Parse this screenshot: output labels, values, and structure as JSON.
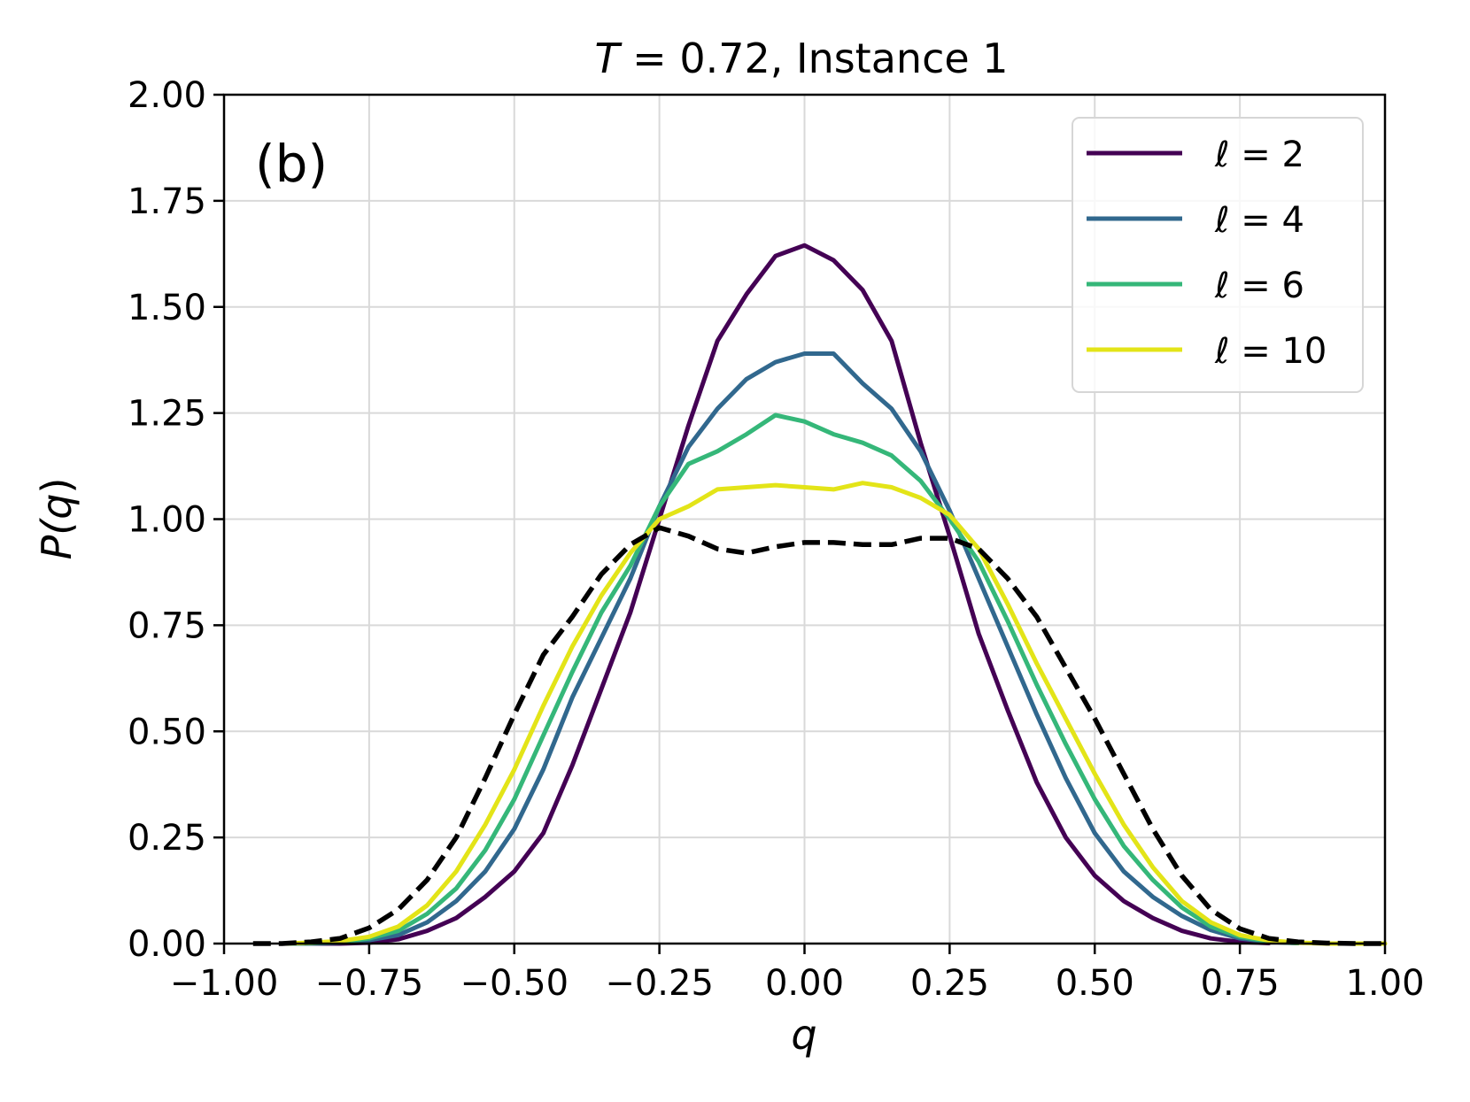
{
  "chart_data": {
    "type": "line",
    "title": "T = 0.72, Instance 1",
    "title_parts": {
      "var": "T",
      "rest": " = 0.72, Instance 1"
    },
    "panel_label": "(b)",
    "xlabel": "q",
    "ylabel": "P(q)",
    "ylabel_parts": {
      "p": "P(",
      "q": "q",
      "close": ")"
    },
    "xlim": [
      -1.0,
      1.0
    ],
    "ylim": [
      0.0,
      2.0
    ],
    "xticks": [
      -1.0,
      -0.75,
      -0.5,
      -0.25,
      0.0,
      0.25,
      0.5,
      0.75,
      1.0
    ],
    "xtick_labels": [
      "−1.00",
      "−0.75",
      "−0.50",
      "−0.25",
      "0.00",
      "0.25",
      "0.50",
      "0.75",
      "1.00"
    ],
    "yticks": [
      0.0,
      0.25,
      0.5,
      0.75,
      1.0,
      1.25,
      1.5,
      1.75,
      2.0
    ],
    "ytick_labels": [
      "0.00",
      "0.25",
      "0.50",
      "0.75",
      "1.00",
      "1.25",
      "1.50",
      "1.75",
      "2.00"
    ],
    "grid": true,
    "legend_position": "top-right",
    "x": [
      -0.95,
      -0.9,
      -0.85,
      -0.8,
      -0.75,
      -0.7,
      -0.65,
      -0.6,
      -0.55,
      -0.5,
      -0.45,
      -0.4,
      -0.35,
      -0.3,
      -0.25,
      -0.2,
      -0.15,
      -0.1,
      -0.05,
      0.0,
      0.05,
      0.1,
      0.15,
      0.2,
      0.25,
      0.3,
      0.35,
      0.4,
      0.45,
      0.5,
      0.55,
      0.6,
      0.65,
      0.7,
      0.75,
      0.8,
      0.85,
      0.9,
      0.95,
      1.0
    ],
    "series": [
      {
        "name": "ℓ = 2",
        "label_var": "ℓ",
        "label_rest": " = 2",
        "color": "#440154",
        "dashed": false,
        "values": [
          null,
          0.0,
          0.0,
          0.0,
          0.002,
          0.01,
          0.03,
          0.06,
          0.11,
          0.17,
          0.26,
          0.42,
          0.6,
          0.78,
          1.0,
          1.22,
          1.42,
          1.53,
          1.62,
          1.645,
          1.61,
          1.54,
          1.42,
          1.18,
          0.96,
          0.73,
          0.55,
          0.38,
          0.25,
          0.16,
          0.1,
          0.06,
          0.03,
          0.012,
          0.004,
          0.001,
          null,
          null,
          null,
          null
        ]
      },
      {
        "name": "ℓ = 4",
        "label_var": "ℓ",
        "label_rest": " = 4",
        "color": "#31688e",
        "dashed": false,
        "values": [
          null,
          0.0,
          0.0,
          0.002,
          0.008,
          0.02,
          0.05,
          0.1,
          0.17,
          0.27,
          0.41,
          0.58,
          0.72,
          0.86,
          1.03,
          1.17,
          1.26,
          1.33,
          1.37,
          1.39,
          1.39,
          1.32,
          1.26,
          1.16,
          1.02,
          0.86,
          0.7,
          0.54,
          0.39,
          0.26,
          0.17,
          0.11,
          0.065,
          0.032,
          0.012,
          0.004,
          0.001,
          null,
          null,
          null
        ]
      },
      {
        "name": "ℓ = 6",
        "label_var": "ℓ",
        "label_rest": " = 6",
        "color": "#35b779",
        "dashed": false,
        "values": [
          null,
          0.0,
          0.001,
          0.004,
          0.012,
          0.03,
          0.07,
          0.13,
          0.22,
          0.34,
          0.49,
          0.64,
          0.78,
          0.89,
          1.03,
          1.13,
          1.16,
          1.2,
          1.245,
          1.23,
          1.2,
          1.18,
          1.15,
          1.09,
          1.0,
          0.9,
          0.76,
          0.61,
          0.47,
          0.34,
          0.23,
          0.15,
          0.085,
          0.04,
          0.016,
          0.005,
          0.001,
          null,
          null,
          null
        ]
      },
      {
        "name": "ℓ = 10",
        "label_var": "ℓ",
        "label_rest": " = 10",
        "color": "#e3e418",
        "dashed": false,
        "values": [
          null,
          0.0,
          0.002,
          0.006,
          0.016,
          0.04,
          0.09,
          0.17,
          0.28,
          0.41,
          0.56,
          0.7,
          0.82,
          0.92,
          1.0,
          1.03,
          1.07,
          1.075,
          1.08,
          1.075,
          1.07,
          1.085,
          1.075,
          1.05,
          1.01,
          0.93,
          0.8,
          0.66,
          0.53,
          0.4,
          0.28,
          0.18,
          0.1,
          0.05,
          0.02,
          0.007,
          0.002,
          0.0,
          0.0,
          0.0
        ]
      }
    ],
    "reference": {
      "name": "dashed reference",
      "color": "#000000",
      "dashed": true,
      "values": [
        0.0,
        0.0,
        0.004,
        0.012,
        0.037,
        0.08,
        0.15,
        0.25,
        0.39,
        0.54,
        0.68,
        0.77,
        0.87,
        0.94,
        0.98,
        0.96,
        0.93,
        0.92,
        0.935,
        0.945,
        0.945,
        0.94,
        0.94,
        0.955,
        0.955,
        0.93,
        0.86,
        0.77,
        0.65,
        0.53,
        0.4,
        0.27,
        0.16,
        0.08,
        0.035,
        0.012,
        0.004,
        0.001,
        0.0,
        0.0
      ]
    }
  }
}
